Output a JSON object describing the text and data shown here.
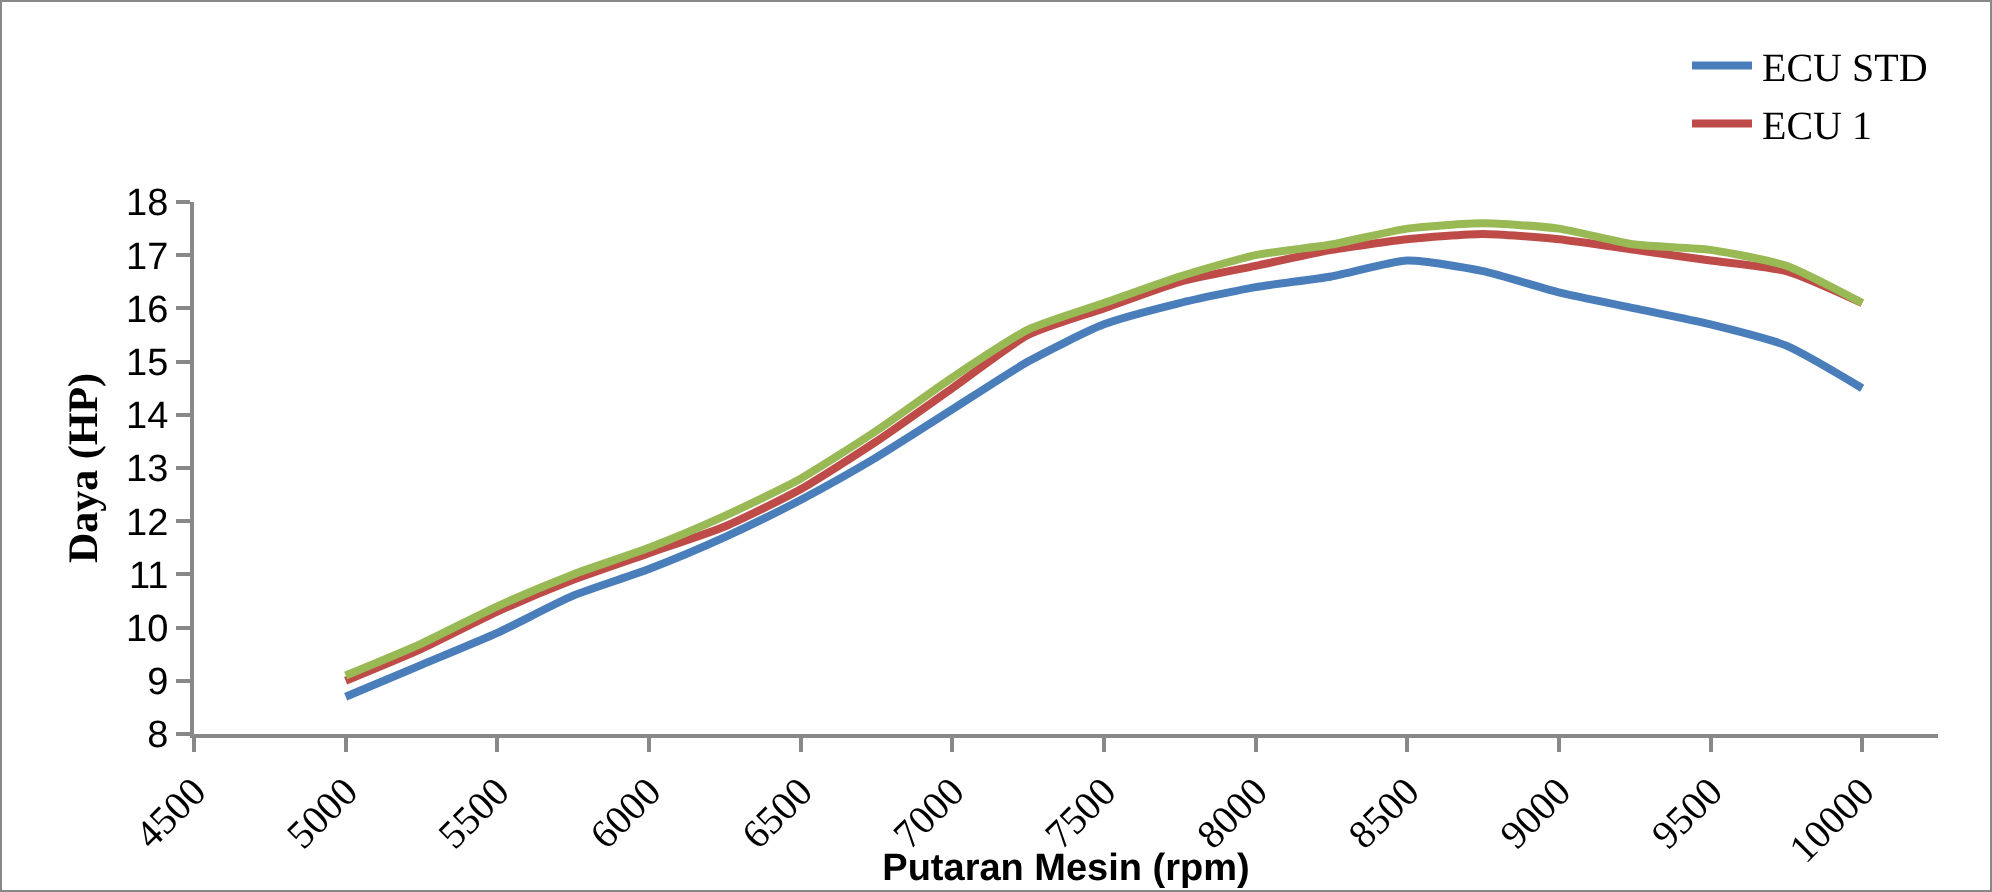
{
  "chart_data": {
    "type": "line",
    "xlabel": "Putaran Mesin (rpm)",
    "ylabel": "Daya (HP)",
    "x": [
      5000,
      5250,
      5500,
      5750,
      6000,
      6250,
      6500,
      6750,
      7000,
      7250,
      7500,
      7750,
      8000,
      8250,
      8500,
      8750,
      9000,
      9250,
      9500,
      9750,
      10000
    ],
    "series": [
      {
        "name": "ECU STD",
        "color": "#4a7ebb",
        "values": [
          8.7,
          9.3,
          9.9,
          10.6,
          11.1,
          11.7,
          12.4,
          13.2,
          14.1,
          15.0,
          15.7,
          16.1,
          16.4,
          16.6,
          16.9,
          16.7,
          16.3,
          16.0,
          15.7,
          15.3,
          14.5
        ]
      },
      {
        "name": "ECU 1",
        "color": "#be4b48",
        "values": [
          9.0,
          9.6,
          10.3,
          10.9,
          11.4,
          11.9,
          12.6,
          13.5,
          14.5,
          15.5,
          16.0,
          16.5,
          16.8,
          17.1,
          17.3,
          17.4,
          17.3,
          17.1,
          16.9,
          16.7,
          16.1
        ]
      },
      {
        "color": "#98b954",
        "values": [
          9.1,
          9.7,
          10.4,
          11.0,
          11.5,
          12.1,
          12.8,
          13.7,
          14.7,
          15.6,
          16.1,
          16.6,
          17.0,
          17.2,
          17.5,
          17.6,
          17.5,
          17.2,
          17.1,
          16.8,
          16.1
        ]
      }
    ],
    "xlim": [
      4500,
      10250
    ],
    "xticks": [
      4500,
      5000,
      5500,
      6000,
      6500,
      7000,
      7500,
      8000,
      8500,
      9000,
      9500,
      10000
    ],
    "ylim": [
      8,
      18
    ],
    "yticks": [
      8,
      9,
      10,
      11,
      12,
      13,
      14,
      15,
      16,
      17,
      18
    ],
    "grid": false,
    "legend": "top right",
    "marker": "none",
    "line_style": "solid"
  }
}
